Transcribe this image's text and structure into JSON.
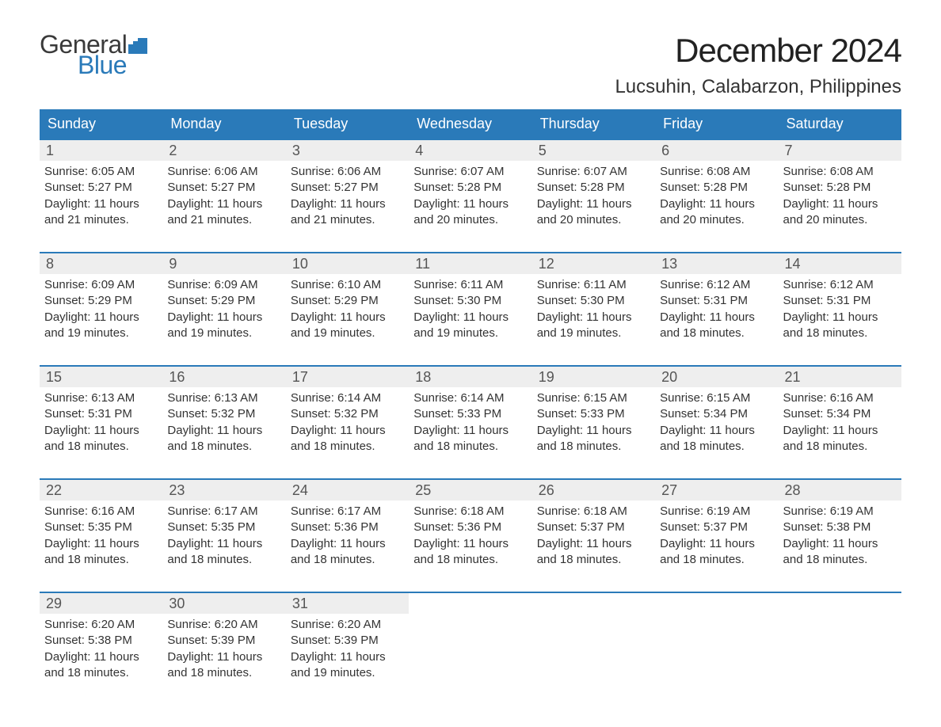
{
  "logo": {
    "general": "General",
    "blue": "Blue",
    "icon_color": "#2a7ab9"
  },
  "title": "December 2024",
  "location": "Lucsuhin, Calabarzon, Philippines",
  "colors": {
    "header_bg": "#2a7ab9",
    "header_text": "#ffffff",
    "daynum_bg": "#eeeeee",
    "week_border": "#2a7ab9",
    "text": "#333333",
    "background": "#ffffff"
  },
  "day_names": [
    "Sunday",
    "Monday",
    "Tuesday",
    "Wednesday",
    "Thursday",
    "Friday",
    "Saturday"
  ],
  "weeks": [
    [
      {
        "n": "1",
        "sr": "Sunrise: 6:05 AM",
        "ss": "Sunset: 5:27 PM",
        "d1": "Daylight: 11 hours",
        "d2": "and 21 minutes."
      },
      {
        "n": "2",
        "sr": "Sunrise: 6:06 AM",
        "ss": "Sunset: 5:27 PM",
        "d1": "Daylight: 11 hours",
        "d2": "and 21 minutes."
      },
      {
        "n": "3",
        "sr": "Sunrise: 6:06 AM",
        "ss": "Sunset: 5:27 PM",
        "d1": "Daylight: 11 hours",
        "d2": "and 21 minutes."
      },
      {
        "n": "4",
        "sr": "Sunrise: 6:07 AM",
        "ss": "Sunset: 5:28 PM",
        "d1": "Daylight: 11 hours",
        "d2": "and 20 minutes."
      },
      {
        "n": "5",
        "sr": "Sunrise: 6:07 AM",
        "ss": "Sunset: 5:28 PM",
        "d1": "Daylight: 11 hours",
        "d2": "and 20 minutes."
      },
      {
        "n": "6",
        "sr": "Sunrise: 6:08 AM",
        "ss": "Sunset: 5:28 PM",
        "d1": "Daylight: 11 hours",
        "d2": "and 20 minutes."
      },
      {
        "n": "7",
        "sr": "Sunrise: 6:08 AM",
        "ss": "Sunset: 5:28 PM",
        "d1": "Daylight: 11 hours",
        "d2": "and 20 minutes."
      }
    ],
    [
      {
        "n": "8",
        "sr": "Sunrise: 6:09 AM",
        "ss": "Sunset: 5:29 PM",
        "d1": "Daylight: 11 hours",
        "d2": "and 19 minutes."
      },
      {
        "n": "9",
        "sr": "Sunrise: 6:09 AM",
        "ss": "Sunset: 5:29 PM",
        "d1": "Daylight: 11 hours",
        "d2": "and 19 minutes."
      },
      {
        "n": "10",
        "sr": "Sunrise: 6:10 AM",
        "ss": "Sunset: 5:29 PM",
        "d1": "Daylight: 11 hours",
        "d2": "and 19 minutes."
      },
      {
        "n": "11",
        "sr": "Sunrise: 6:11 AM",
        "ss": "Sunset: 5:30 PM",
        "d1": "Daylight: 11 hours",
        "d2": "and 19 minutes."
      },
      {
        "n": "12",
        "sr": "Sunrise: 6:11 AM",
        "ss": "Sunset: 5:30 PM",
        "d1": "Daylight: 11 hours",
        "d2": "and 19 minutes."
      },
      {
        "n": "13",
        "sr": "Sunrise: 6:12 AM",
        "ss": "Sunset: 5:31 PM",
        "d1": "Daylight: 11 hours",
        "d2": "and 18 minutes."
      },
      {
        "n": "14",
        "sr": "Sunrise: 6:12 AM",
        "ss": "Sunset: 5:31 PM",
        "d1": "Daylight: 11 hours",
        "d2": "and 18 minutes."
      }
    ],
    [
      {
        "n": "15",
        "sr": "Sunrise: 6:13 AM",
        "ss": "Sunset: 5:31 PM",
        "d1": "Daylight: 11 hours",
        "d2": "and 18 minutes."
      },
      {
        "n": "16",
        "sr": "Sunrise: 6:13 AM",
        "ss": "Sunset: 5:32 PM",
        "d1": "Daylight: 11 hours",
        "d2": "and 18 minutes."
      },
      {
        "n": "17",
        "sr": "Sunrise: 6:14 AM",
        "ss": "Sunset: 5:32 PM",
        "d1": "Daylight: 11 hours",
        "d2": "and 18 minutes."
      },
      {
        "n": "18",
        "sr": "Sunrise: 6:14 AM",
        "ss": "Sunset: 5:33 PM",
        "d1": "Daylight: 11 hours",
        "d2": "and 18 minutes."
      },
      {
        "n": "19",
        "sr": "Sunrise: 6:15 AM",
        "ss": "Sunset: 5:33 PM",
        "d1": "Daylight: 11 hours",
        "d2": "and 18 minutes."
      },
      {
        "n": "20",
        "sr": "Sunrise: 6:15 AM",
        "ss": "Sunset: 5:34 PM",
        "d1": "Daylight: 11 hours",
        "d2": "and 18 minutes."
      },
      {
        "n": "21",
        "sr": "Sunrise: 6:16 AM",
        "ss": "Sunset: 5:34 PM",
        "d1": "Daylight: 11 hours",
        "d2": "and 18 minutes."
      }
    ],
    [
      {
        "n": "22",
        "sr": "Sunrise: 6:16 AM",
        "ss": "Sunset: 5:35 PM",
        "d1": "Daylight: 11 hours",
        "d2": "and 18 minutes."
      },
      {
        "n": "23",
        "sr": "Sunrise: 6:17 AM",
        "ss": "Sunset: 5:35 PM",
        "d1": "Daylight: 11 hours",
        "d2": "and 18 minutes."
      },
      {
        "n": "24",
        "sr": "Sunrise: 6:17 AM",
        "ss": "Sunset: 5:36 PM",
        "d1": "Daylight: 11 hours",
        "d2": "and 18 minutes."
      },
      {
        "n": "25",
        "sr": "Sunrise: 6:18 AM",
        "ss": "Sunset: 5:36 PM",
        "d1": "Daylight: 11 hours",
        "d2": "and 18 minutes."
      },
      {
        "n": "26",
        "sr": "Sunrise: 6:18 AM",
        "ss": "Sunset: 5:37 PM",
        "d1": "Daylight: 11 hours",
        "d2": "and 18 minutes."
      },
      {
        "n": "27",
        "sr": "Sunrise: 6:19 AM",
        "ss": "Sunset: 5:37 PM",
        "d1": "Daylight: 11 hours",
        "d2": "and 18 minutes."
      },
      {
        "n": "28",
        "sr": "Sunrise: 6:19 AM",
        "ss": "Sunset: 5:38 PM",
        "d1": "Daylight: 11 hours",
        "d2": "and 18 minutes."
      }
    ],
    [
      {
        "n": "29",
        "sr": "Sunrise: 6:20 AM",
        "ss": "Sunset: 5:38 PM",
        "d1": "Daylight: 11 hours",
        "d2": "and 18 minutes."
      },
      {
        "n": "30",
        "sr": "Sunrise: 6:20 AM",
        "ss": "Sunset: 5:39 PM",
        "d1": "Daylight: 11 hours",
        "d2": "and 18 minutes."
      },
      {
        "n": "31",
        "sr": "Sunrise: 6:20 AM",
        "ss": "Sunset: 5:39 PM",
        "d1": "Daylight: 11 hours",
        "d2": "and 19 minutes."
      },
      null,
      null,
      null,
      null
    ]
  ]
}
